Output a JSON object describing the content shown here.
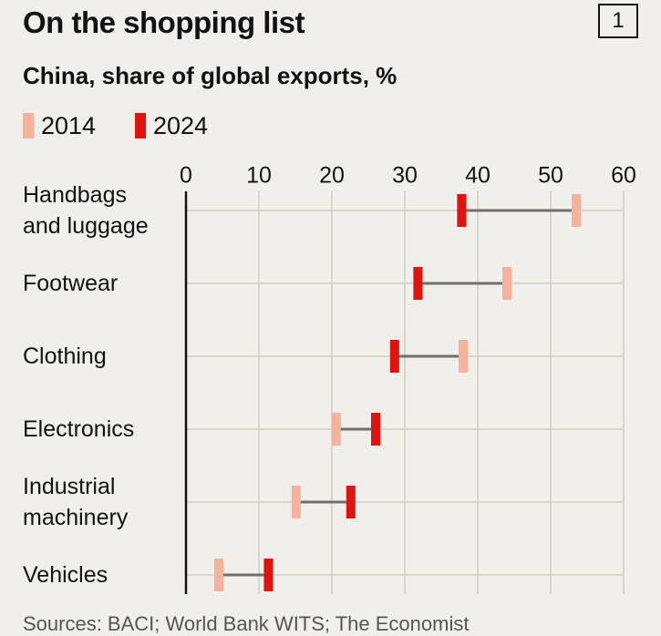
{
  "chart_data": {
    "type": "dumbbell",
    "title": "On the shopping list",
    "chart_number": "1",
    "subtitle": "China, share of global exports, %",
    "categories": [
      "Handbags\nand luggage",
      "Footwear",
      "Clothing",
      "Electronics",
      "Industrial\nmachinery",
      "Vehicles"
    ],
    "series": [
      {
        "name": "2014",
        "color": "#f6b29a",
        "values": [
          53.5,
          44,
          38,
          20.6,
          15.1,
          4.5
        ]
      },
      {
        "name": "2024",
        "color": "#e3120b",
        "values": [
          37.8,
          31.8,
          28.6,
          26,
          22.6,
          11.3
        ]
      }
    ],
    "xlim": [
      0,
      60
    ],
    "xticks": [
      0,
      10,
      20,
      30,
      40,
      50,
      60
    ],
    "grid": true,
    "source": "Sources: BACI; World Bank WITS; The Economist"
  }
}
